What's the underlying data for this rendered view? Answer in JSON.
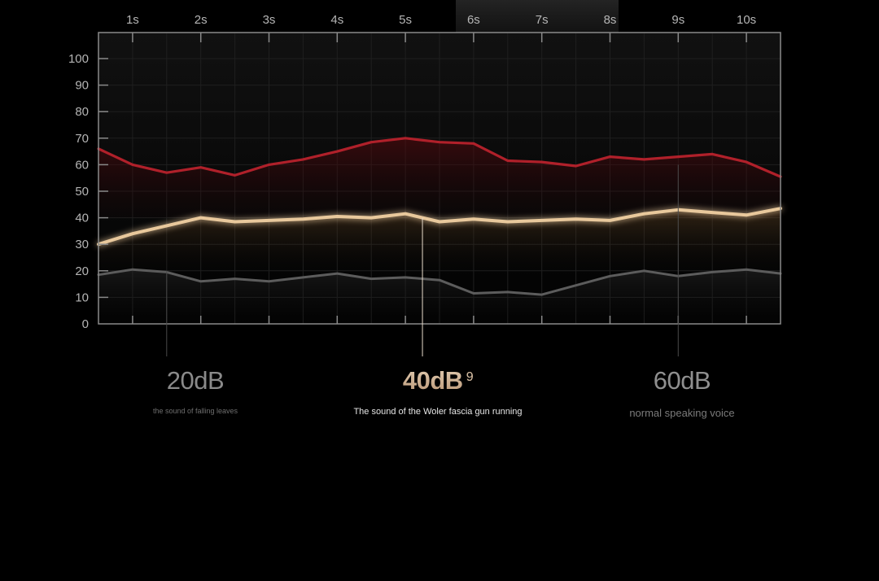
{
  "chart_data": {
    "type": "line",
    "x_tick_labels": [
      "1s",
      "2s",
      "3s",
      "4s",
      "5s",
      "6s",
      "7s",
      "8s",
      "9s",
      "10s"
    ],
    "y_tick_labels": [
      "0",
      "10",
      "20",
      "30",
      "40",
      "50",
      "60",
      "70",
      "80",
      "90",
      "100"
    ],
    "ylim": [
      0,
      100
    ],
    "xlim": [
      0.5,
      10.5
    ],
    "x": [
      0.5,
      1,
      1.5,
      2,
      2.5,
      3,
      3.5,
      4,
      4.5,
      5,
      5.5,
      6,
      6.5,
      7,
      7.5,
      8,
      8.5,
      9,
      9.5,
      10,
      10.5
    ],
    "series": [
      {
        "color": "#b8222c",
        "values": [
          66,
          60,
          57,
          59,
          56,
          60,
          62,
          65,
          68.5,
          70,
          68.5,
          68,
          61.5,
          61,
          59.5,
          63,
          62,
          63,
          64,
          61,
          55.5
        ]
      },
      {
        "color": "#e8c89c",
        "values": [
          30,
          34,
          37,
          40,
          38.5,
          39,
          39.5,
          40.5,
          40,
          41.5,
          38.5,
          39.5,
          38.5,
          39,
          39.5,
          39,
          41.5,
          43,
          42,
          41,
          43.5
        ]
      },
      {
        "color": "#5c5c5c",
        "values": [
          18.5,
          20.5,
          19.5,
          16,
          17,
          16,
          17.5,
          19,
          17,
          17.5,
          16.5,
          11.5,
          12,
          11,
          14.5,
          18,
          20,
          18,
          19.5,
          20.5,
          19
        ]
      }
    ],
    "grid": true
  },
  "legend": [
    {
      "value": "20dB",
      "description": "the sound of falling leaves",
      "x": 1.5
    },
    {
      "value": "40dB",
      "sup": "9",
      "description": "The sound of the Woler fascia gun running",
      "x": 5.25
    },
    {
      "value": "60dB",
      "description": "normal speaking voice",
      "x": 9
    }
  ]
}
